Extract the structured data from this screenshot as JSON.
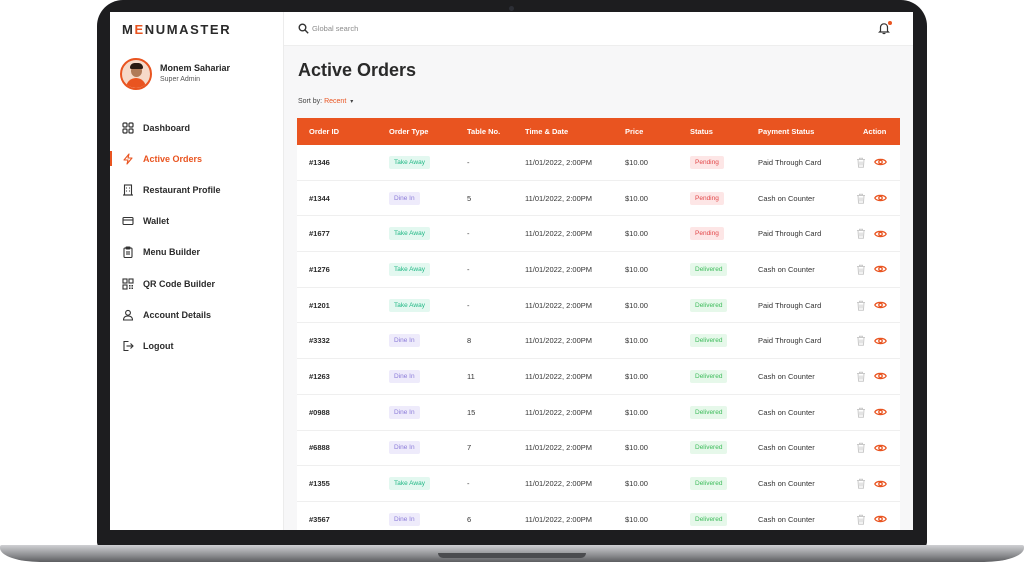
{
  "app": {
    "logo_prefix": "M",
    "logo_accent": "E",
    "logo_suffix": "NUMASTER"
  },
  "search": {
    "placeholder": "Global search"
  },
  "user": {
    "name": "Monem Sahariar",
    "role": "Super Admin"
  },
  "sidebar": {
    "items": [
      {
        "label": "Dashboard",
        "icon": "grid-icon",
        "active": false
      },
      {
        "label": "Active Orders",
        "icon": "bolt-icon",
        "active": true
      },
      {
        "label": "Restaurant Profile",
        "icon": "building-icon",
        "active": false
      },
      {
        "label": "Wallet",
        "icon": "card-icon",
        "active": false
      },
      {
        "label": "Menu Builder",
        "icon": "clipboard-icon",
        "active": false
      },
      {
        "label": "QR Code Builder",
        "icon": "qr-icon",
        "active": false
      },
      {
        "label": "Account Details",
        "icon": "user-icon",
        "active": false
      },
      {
        "label": "Logout",
        "icon": "logout-icon",
        "active": false
      }
    ]
  },
  "main": {
    "title": "Active Orders",
    "sort_label": "Sort by:",
    "sort_value": "Recent"
  },
  "table": {
    "columns": [
      "Order ID",
      "Order Type",
      "Table No.",
      "Time & Date",
      "Price",
      "Status",
      "Payment Status",
      "Action"
    ],
    "rows": [
      {
        "id": "#1346",
        "type": "Take Away",
        "table": "-",
        "time": "11/01/2022, 2:00PM",
        "price": "$10.00",
        "status": "Pending",
        "payment": "Paid Through Card"
      },
      {
        "id": "#1344",
        "type": "Dine In",
        "table": "5",
        "time": "11/01/2022, 2:00PM",
        "price": "$10.00",
        "status": "Pending",
        "payment": "Cash on Counter"
      },
      {
        "id": "#1677",
        "type": "Take Away",
        "table": "-",
        "time": "11/01/2022, 2:00PM",
        "price": "$10.00",
        "status": "Pending",
        "payment": "Paid Through Card"
      },
      {
        "id": "#1276",
        "type": "Take Away",
        "table": "-",
        "time": "11/01/2022, 2:00PM",
        "price": "$10.00",
        "status": "Delivered",
        "payment": "Cash on Counter"
      },
      {
        "id": "#1201",
        "type": "Take Away",
        "table": "-",
        "time": "11/01/2022, 2:00PM",
        "price": "$10.00",
        "status": "Delivered",
        "payment": "Paid Through Card"
      },
      {
        "id": "#3332",
        "type": "Dine In",
        "table": "8",
        "time": "11/01/2022, 2:00PM",
        "price": "$10.00",
        "status": "Delivered",
        "payment": "Paid Through Card"
      },
      {
        "id": "#1263",
        "type": "Dine In",
        "table": "11",
        "time": "11/01/2022, 2:00PM",
        "price": "$10.00",
        "status": "Delivered",
        "payment": "Cash on Counter"
      },
      {
        "id": "#0988",
        "type": "Dine In",
        "table": "15",
        "time": "11/01/2022, 2:00PM",
        "price": "$10.00",
        "status": "Delivered",
        "payment": "Cash on Counter"
      },
      {
        "id": "#6888",
        "type": "Dine In",
        "table": "7",
        "time": "11/01/2022, 2:00PM",
        "price": "$10.00",
        "status": "Delivered",
        "payment": "Cash on Counter"
      },
      {
        "id": "#1355",
        "type": "Take Away",
        "table": "-",
        "time": "11/01/2022, 2:00PM",
        "price": "$10.00",
        "status": "Delivered",
        "payment": "Cash on Counter"
      },
      {
        "id": "#3567",
        "type": "Dine In",
        "table": "6",
        "time": "11/01/2022, 2:00PM",
        "price": "$10.00",
        "status": "Delivered",
        "payment": "Cash on Counter"
      }
    ]
  },
  "colors": {
    "accent": "#e95420",
    "take_away": "#1fb784",
    "dine_in": "#8b7bd8",
    "pending": "#e2484a",
    "delivered": "#3cbb5a"
  }
}
